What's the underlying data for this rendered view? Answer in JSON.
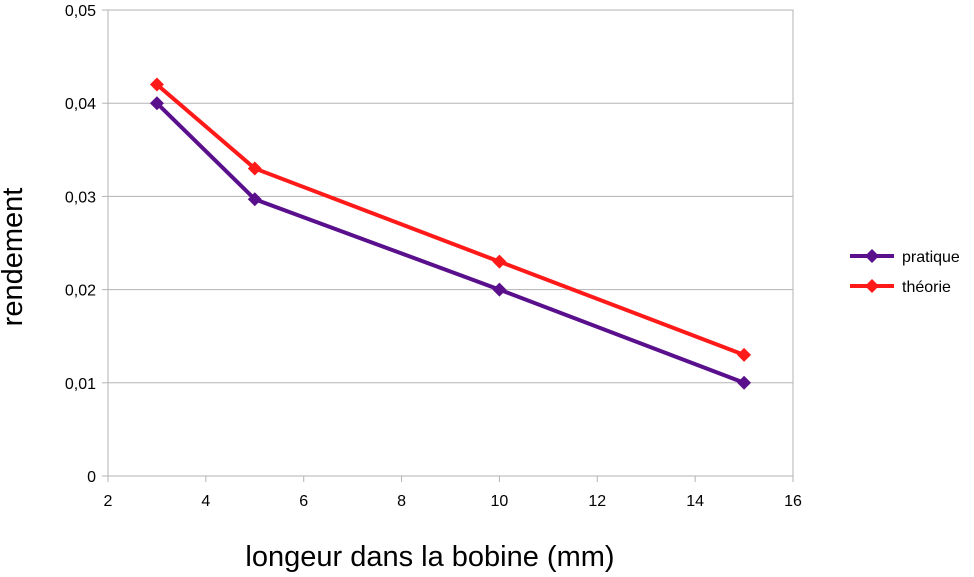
{
  "chart_data": {
    "type": "line",
    "xlabel": "longeur dans la bobine (mm)",
    "ylabel": "rendement",
    "xlim": [
      2,
      16
    ],
    "ylim": [
      0,
      0.05
    ],
    "x_ticks": [
      "2",
      "4",
      "6",
      "8",
      "10",
      "12",
      "14",
      "16"
    ],
    "y_ticks": [
      "0",
      "0,01",
      "0,02",
      "0,03",
      "0,04",
      "0,05"
    ],
    "grid": "horizontal",
    "legend_position": "right",
    "series": [
      {
        "name": "pratique",
        "color": "#5a0f8c",
        "marker": "diamond",
        "x": [
          3,
          5,
          10,
          15
        ],
        "y": [
          0.04,
          0.0297,
          0.02,
          0.01
        ]
      },
      {
        "name": "théorie",
        "color": "#ff1a1a",
        "marker": "diamond",
        "x": [
          3,
          5,
          10,
          15
        ],
        "y": [
          0.042,
          0.033,
          0.023,
          0.013
        ]
      }
    ]
  }
}
